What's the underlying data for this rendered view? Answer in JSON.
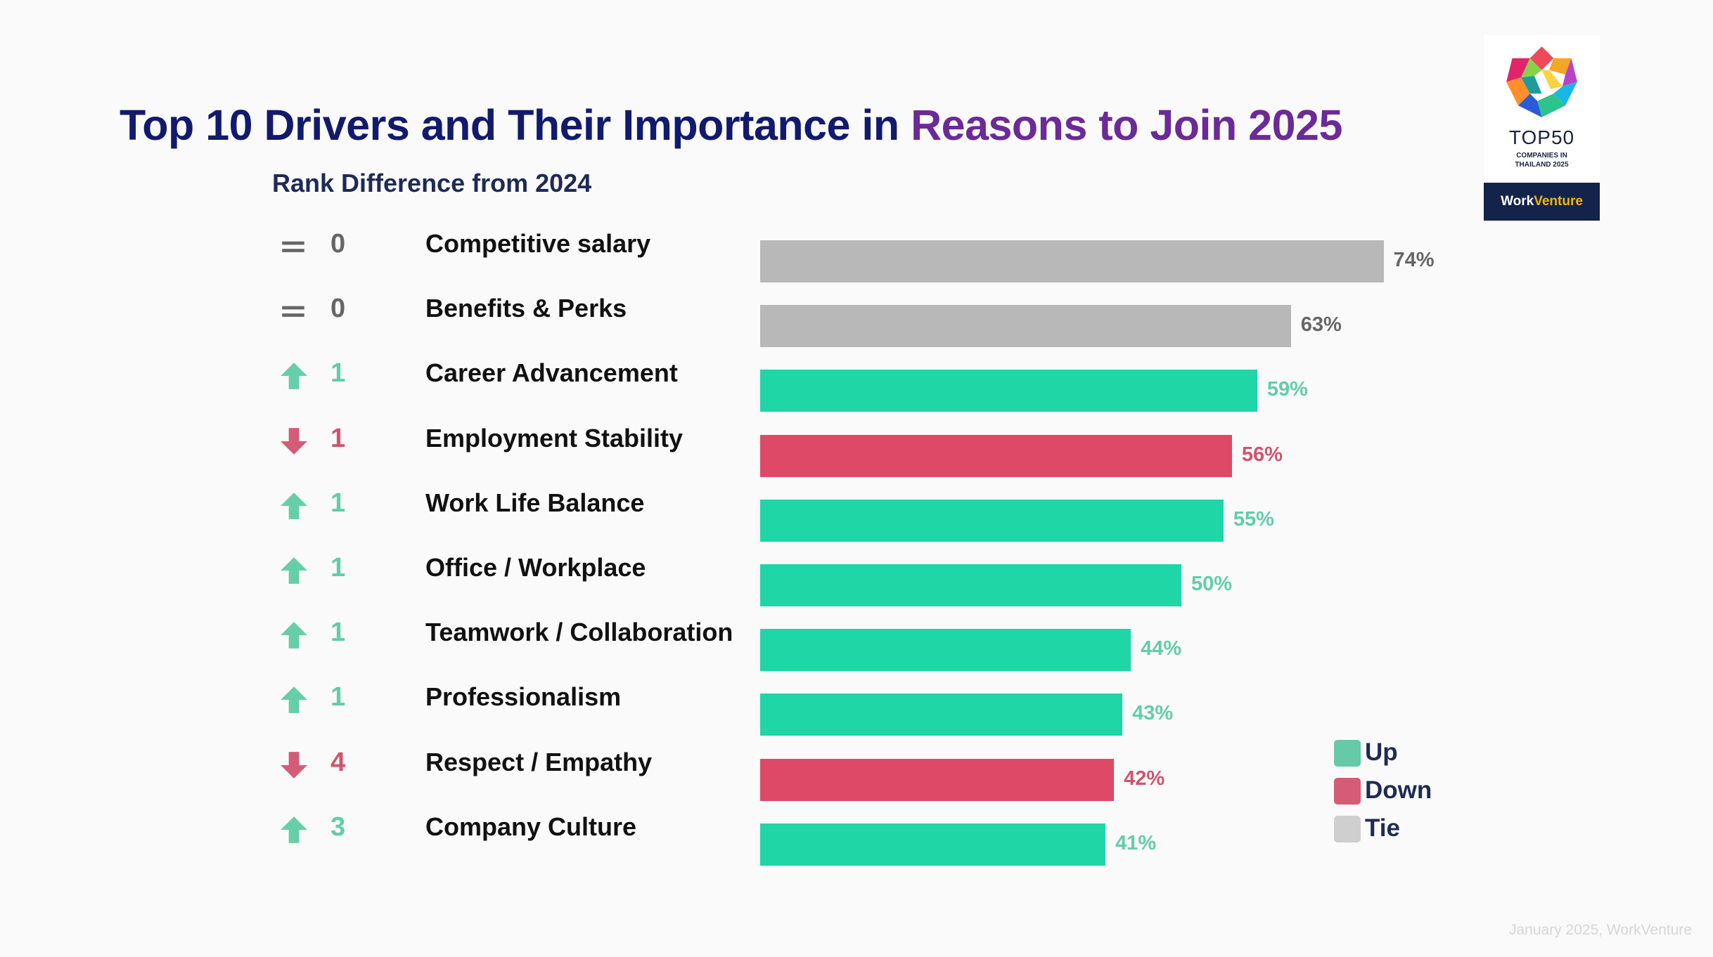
{
  "title": {
    "main": "Top 10 Drivers and Their Importance in ",
    "accent": "Reasons to Join 2025"
  },
  "subtitle": "Rank Difference from 2024",
  "logo": {
    "brand": "TOP50",
    "line1": "COMPANIES IN",
    "line2": "THAILAND 2025",
    "band_work": "Work",
    "band_venture": "Venture"
  },
  "colors": {
    "up": "#1fd6a6",
    "down": "#de4967",
    "tie": "#b8b8b8",
    "up_icon": "#66cfa8",
    "down_icon": "#d45c77",
    "tie_icon": "#666666",
    "up_text": "#62cda8",
    "down_text": "#d0546f",
    "tie_text": "#666666",
    "title": "#121a6e",
    "title_accent": "#6b2a98"
  },
  "chart_data": {
    "type": "bar",
    "orientation": "horizontal",
    "title": "Top 10 Drivers and Their Importance in Reasons to Join 2025",
    "subtitle": "Rank Difference from 2024",
    "unit": "%",
    "xlim": [
      0,
      100
    ],
    "categories": [
      "Competitive salary",
      "Benefits & Perks",
      "Career Advancement",
      "Employment Stability",
      "Work Life Balance",
      "Office / Workplace",
      "Teamwork / Collaboration",
      "Professionalism",
      "Respect / Empathy",
      "Company Culture"
    ],
    "values": [
      74,
      63,
      59,
      56,
      55,
      50,
      44,
      43,
      42,
      41
    ],
    "value_labels": [
      "74%",
      "63%",
      "59%",
      "56%",
      "55%",
      "50%",
      "44%",
      "43%",
      "42%",
      "41%"
    ],
    "rank_change": [
      {
        "direction": "tie",
        "value": "0"
      },
      {
        "direction": "tie",
        "value": "0"
      },
      {
        "direction": "up",
        "value": "1"
      },
      {
        "direction": "down",
        "value": "1"
      },
      {
        "direction": "up",
        "value": "1"
      },
      {
        "direction": "up",
        "value": "1"
      },
      {
        "direction": "up",
        "value": "1"
      },
      {
        "direction": "up",
        "value": "1"
      },
      {
        "direction": "down",
        "value": "4"
      },
      {
        "direction": "up",
        "value": "3"
      }
    ],
    "legend": {
      "placement": "bottom-right",
      "items": [
        {
          "key": "up",
          "label": "Up"
        },
        {
          "key": "down",
          "label": "Down"
        },
        {
          "key": "tie",
          "label": "Tie"
        }
      ]
    }
  },
  "footer": "January 2025, WorkVenture"
}
